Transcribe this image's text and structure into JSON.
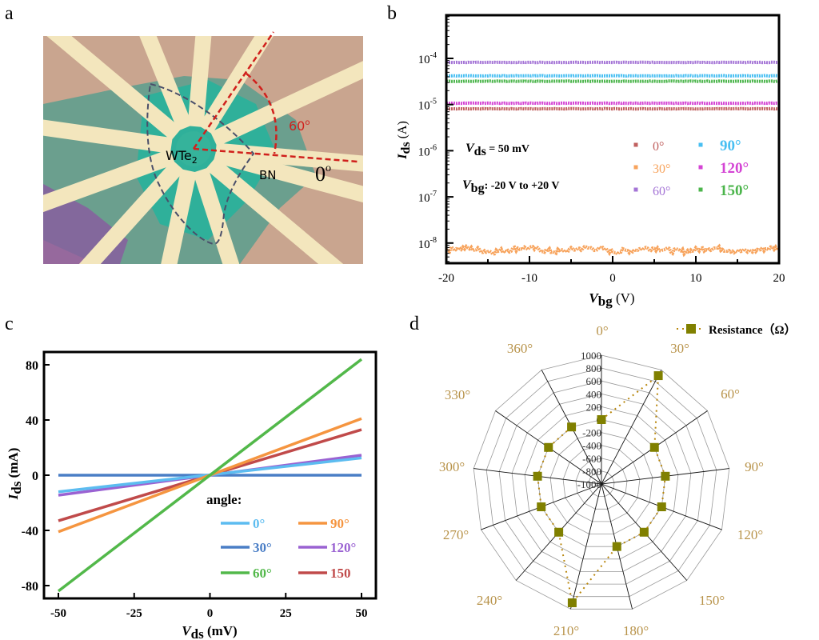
{
  "panel_labels": {
    "a": "a",
    "b": "b",
    "c": "c",
    "d": "d"
  },
  "panel_a": {
    "labels": {
      "material": "WTe",
      "material_sub": "2",
      "substrate": "BN",
      "angle_60": "60",
      "angle_60_sup": "o",
      "angle_0": "0",
      "angle_0_sup": "o"
    },
    "colors": {
      "angle_lines": "#d0201c",
      "flake_outline": "#4a4f6a"
    }
  },
  "chart_data": [
    {
      "type": "scatter",
      "panel": "b",
      "xlabel": {
        "main": "V",
        "sub": "bg",
        "unit": " (V)"
      },
      "ylabel": {
        "main": "I",
        "sub": "ds",
        "unit": " (A)"
      },
      "xlim": [
        -20,
        20
      ],
      "ylim": [
        4e-09,
        0.0009
      ],
      "yscale": "log",
      "xticks": [
        "-20",
        "-10",
        "0",
        "10",
        "20"
      ],
      "xtick_values": [
        -20,
        -10,
        0,
        10,
        20
      ],
      "yticks": [
        {
          "base": "10",
          "exp": "-4",
          "value": 0.0001
        },
        {
          "base": "10",
          "exp": "-5",
          "value": 1e-05
        },
        {
          "base": "10",
          "exp": "-6",
          "value": 1e-06
        },
        {
          "base": "10",
          "exp": "-7",
          "value": 1e-07
        },
        {
          "base": "10",
          "exp": "-8",
          "value": 1e-08
        }
      ],
      "annotations": {
        "vds_main": "V",
        "vds_sub": "ds",
        "vds_text": " = 50 mV",
        "vbg_main": "V",
        "vbg_sub": "bg",
        "vbg_text": ":   -20 V to +20 V"
      },
      "legend_placement": "center-right",
      "series": [
        {
          "name": "0°",
          "value": 8.1e-06,
          "color": "#c0605f"
        },
        {
          "name": "30°",
          "value": 7.2e-09,
          "color": "#f7a35c",
          "noisy": true
        },
        {
          "name": "60°",
          "value": 8.2e-05,
          "color": "#a474d6"
        },
        {
          "name": "90°",
          "value": 4.2e-05,
          "color": "#48bff2"
        },
        {
          "name": "120°",
          "value": 1.07e-05,
          "color": "#d444d4"
        },
        {
          "name": "150°",
          "value": 3.2e-05,
          "color": "#4cb54c"
        }
      ]
    },
    {
      "type": "line",
      "panel": "c",
      "xlabel": {
        "main": "V",
        "sub": "ds",
        "unit": " (mV)"
      },
      "ylabel": {
        "main": "I",
        "sub": "ds",
        "unit": " (mA)"
      },
      "xlim": [
        -50,
        50
      ],
      "ylim": [
        -86,
        90
      ],
      "xticks": [
        "-50",
        "-25",
        "0",
        "25",
        "50"
      ],
      "xtick_values": [
        -50,
        -25,
        0,
        25,
        50
      ],
      "yticks": [
        "80",
        "40",
        "0",
        "-40",
        "-80"
      ],
      "ytick_values": [
        80,
        40,
        0,
        -40,
        -80
      ],
      "legend_title": "angle:",
      "legend_placement": "bottom-right",
      "series": [
        {
          "name": "0°",
          "x": [
            -50,
            50
          ],
          "y": [
            -12,
            12.5
          ],
          "color": "#5cbcf0"
        },
        {
          "name": "30°",
          "x": [
            -50,
            50
          ],
          "y": [
            0,
            0
          ],
          "color": "#4a7ec6"
        },
        {
          "name": "60°",
          "x": [
            -50,
            50
          ],
          "y": [
            -84,
            84
          ],
          "color": "#52b84a"
        },
        {
          "name": "90°",
          "x": [
            -50,
            50
          ],
          "y": [
            -41,
            41
          ],
          "color": "#f59540"
        },
        {
          "name": "120°",
          "x": [
            -50,
            50
          ],
          "y": [
            -14.5,
            14.5
          ],
          "color": "#9a62d2"
        },
        {
          "name": "150",
          "x": [
            -50,
            50
          ],
          "y": [
            -33,
            33
          ],
          "color": "#c04a4a"
        }
      ]
    },
    {
      "type": "radar",
      "panel": "d",
      "categories": [
        "0°",
        "30°",
        "60°",
        "90°",
        "120°",
        "150°",
        "180°",
        "210°",
        "240°",
        "270°",
        "300°",
        "330°",
        "360°"
      ],
      "rlim": [
        -1000,
        1000
      ],
      "rticks": [
        "1000",
        "800",
        "600",
        "400",
        "200",
        "0",
        "-200",
        "-400",
        "-600",
        "-800",
        "-1000"
      ],
      "series": [
        {
          "name": "Resistance（Ω）",
          "values": [
            0,
            900,
            0,
            0,
            0,
            0,
            0,
            900,
            0,
            0,
            0,
            0,
            0
          ],
          "color": "#808000",
          "line_color": "#b8860b"
        }
      ],
      "category_label_color": "#b8934a",
      "legend_placement": "top-right"
    }
  ]
}
